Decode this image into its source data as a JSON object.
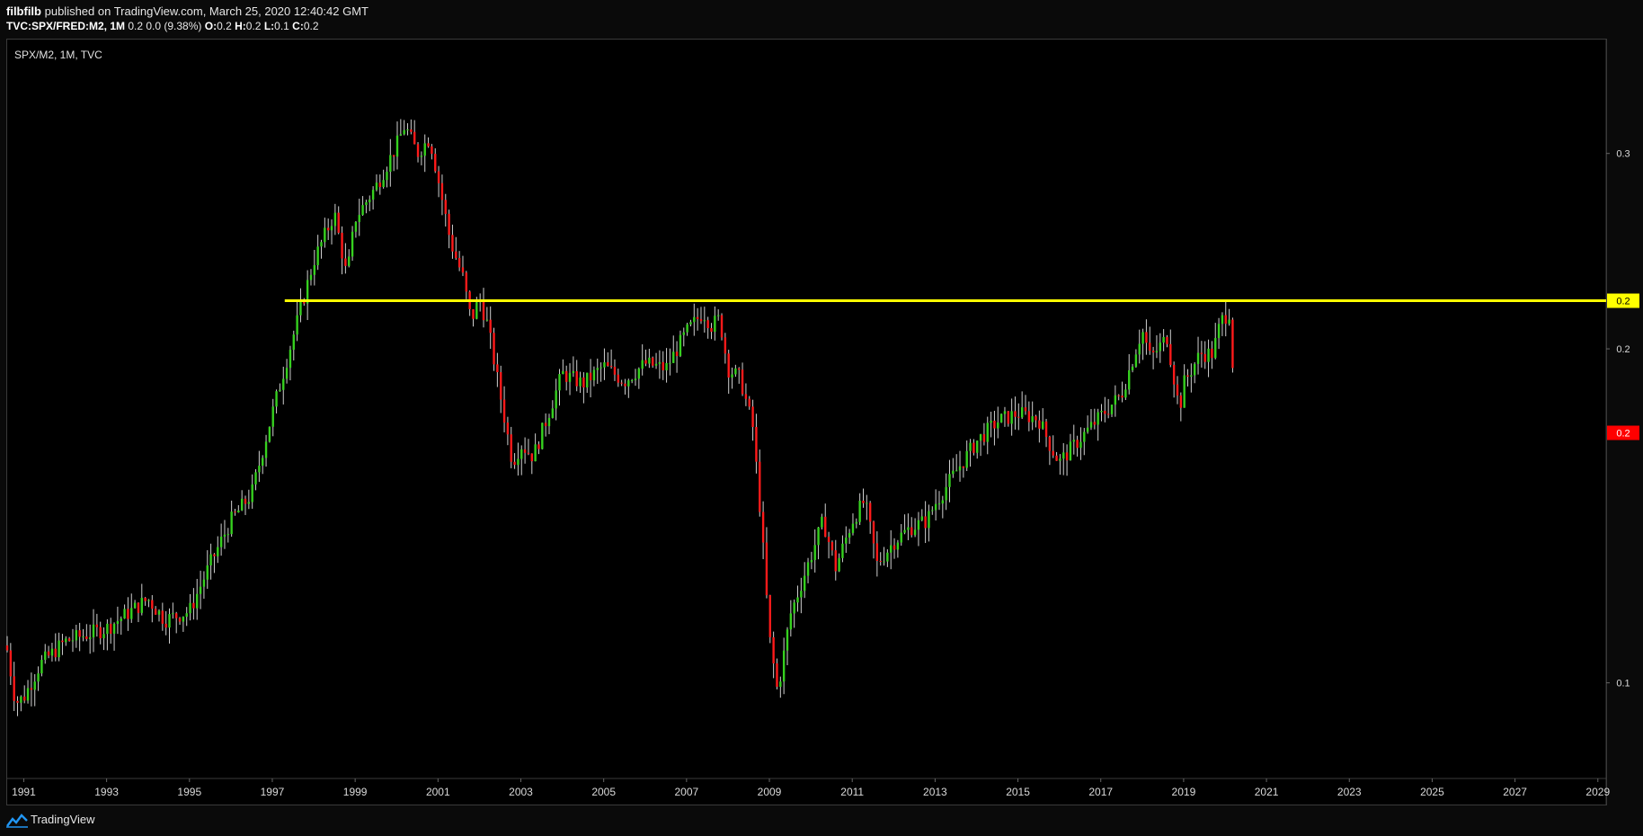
{
  "header": {
    "author": "filbfilb",
    "published_text": " published on TradingView.com, March 25, 2020 12:40:42 GMT",
    "symbol_line_bold": "TVC:SPX/FRED:M2, 1M",
    "ohlc_text": "  0.2 0.0 (9.38%) ",
    "ohlc": [
      {
        "k": "O:",
        "v": "0.2"
      },
      {
        "k": "H:",
        "v": "0.2"
      },
      {
        "k": "L:",
        "v": "0.1"
      },
      {
        "k": "C:",
        "v": "0.2"
      }
    ]
  },
  "chart_label": "SPX/M2, 1M, TVC",
  "footer": {
    "brand": "TradingView"
  },
  "colors": {
    "up": "#36d11f",
    "down": "#ff1a1a",
    "wick": "#cfcfcf",
    "support_line": "#ffff00",
    "price_label_bg": "#ff0000",
    "axis_text": "#d9d9d9"
  },
  "chart_data": {
    "type": "candlestick",
    "title": "SPX/M2, 1M, TVC",
    "y_scale": "log",
    "ylim": [
      0.082,
      0.38
    ],
    "xlim": [
      1990.6,
      2029.2
    ],
    "x_ticks": [
      "1991",
      "1993",
      "1995",
      "1997",
      "1999",
      "2001",
      "2003",
      "2005",
      "2007",
      "2009",
      "2011",
      "2013",
      "2015",
      "2017",
      "2019",
      "2021",
      "2023",
      "2025",
      "2027",
      "2029"
    ],
    "y_ticks": [
      {
        "value": 0.3,
        "label": "0.3"
      },
      {
        "value": 0.2,
        "label": "0.2"
      },
      {
        "value": 0.1,
        "label": "0.1"
      }
    ],
    "horizontal_line": {
      "value": 0.221,
      "from_year": 1997.3,
      "label": "0.2"
    },
    "last_price_label": {
      "value": 0.168,
      "label": "0.2"
    },
    "grid": false,
    "close_path": [
      [
        1990.6,
        0.107
      ],
      [
        1990.8,
        0.096
      ],
      [
        1991.0,
        0.097
      ],
      [
        1991.4,
        0.104
      ],
      [
        1992.0,
        0.109
      ],
      [
        1993.0,
        0.112
      ],
      [
        1994.0,
        0.119
      ],
      [
        1994.4,
        0.114
      ],
      [
        1995.0,
        0.116
      ],
      [
        1995.5,
        0.128
      ],
      [
        1996.0,
        0.14
      ],
      [
        1996.5,
        0.148
      ],
      [
        1997.0,
        0.175
      ],
      [
        1997.5,
        0.205
      ],
      [
        1998.0,
        0.24
      ],
      [
        1998.5,
        0.265
      ],
      [
        1998.8,
        0.232
      ],
      [
        1999.0,
        0.262
      ],
      [
        1999.5,
        0.28
      ],
      [
        2000.0,
        0.305
      ],
      [
        2000.2,
        0.318
      ],
      [
        2000.5,
        0.3
      ],
      [
        2000.8,
        0.31
      ],
      [
        2001.0,
        0.285
      ],
      [
        2001.3,
        0.25
      ],
      [
        2001.6,
        0.232
      ],
      [
        2001.8,
        0.212
      ],
      [
        2002.0,
        0.222
      ],
      [
        2002.2,
        0.21
      ],
      [
        2002.5,
        0.182
      ],
      [
        2002.8,
        0.158
      ],
      [
        2003.0,
        0.164
      ],
      [
        2003.3,
        0.16
      ],
      [
        2003.6,
        0.172
      ],
      [
        2004.0,
        0.19
      ],
      [
        2004.5,
        0.186
      ],
      [
        2005.0,
        0.193
      ],
      [
        2005.5,
        0.187
      ],
      [
        2006.0,
        0.194
      ],
      [
        2006.5,
        0.192
      ],
      [
        2007.0,
        0.207
      ],
      [
        2007.4,
        0.216
      ],
      [
        2007.6,
        0.21
      ],
      [
        2007.8,
        0.213
      ],
      [
        2008.0,
        0.192
      ],
      [
        2008.3,
        0.188
      ],
      [
        2008.6,
        0.17
      ],
      [
        2008.8,
        0.14
      ],
      [
        2009.0,
        0.11
      ],
      [
        2009.2,
        0.098
      ],
      [
        2009.5,
        0.115
      ],
      [
        2010.0,
        0.13
      ],
      [
        2010.3,
        0.14
      ],
      [
        2010.6,
        0.127
      ],
      [
        2011.0,
        0.14
      ],
      [
        2011.3,
        0.146
      ],
      [
        2011.6,
        0.128
      ],
      [
        2012.0,
        0.134
      ],
      [
        2012.4,
        0.138
      ],
      [
        2012.8,
        0.14
      ],
      [
        2013.0,
        0.145
      ],
      [
        2013.5,
        0.155
      ],
      [
        2014.0,
        0.165
      ],
      [
        2014.5,
        0.172
      ],
      [
        2015.0,
        0.175
      ],
      [
        2015.5,
        0.173
      ],
      [
        2015.8,
        0.163
      ],
      [
        2016.0,
        0.158
      ],
      [
        2016.5,
        0.166
      ],
      [
        2017.0,
        0.174
      ],
      [
        2017.5,
        0.182
      ],
      [
        2018.0,
        0.208
      ],
      [
        2018.2,
        0.196
      ],
      [
        2018.6,
        0.205
      ],
      [
        2018.9,
        0.176
      ],
      [
        2019.0,
        0.186
      ],
      [
        2019.4,
        0.198
      ],
      [
        2019.7,
        0.198
      ],
      [
        2019.9,
        0.212
      ],
      [
        2020.1,
        0.216
      ],
      [
        2020.2,
        0.19
      ],
      [
        2020.23,
        0.168
      ]
    ]
  }
}
